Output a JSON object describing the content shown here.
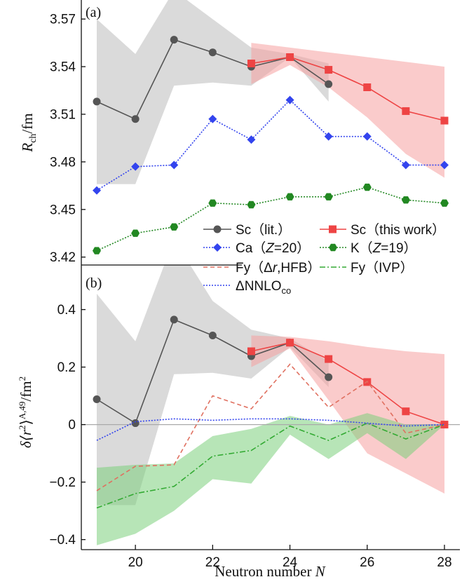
{
  "chart_data": [
    {
      "panel_label": "(a)",
      "type": "line",
      "ylabel": "R_ch/fm",
      "ylabel_main": "R",
      "ylabel_sub": "ch",
      "ylabel_unit": "/fm",
      "xlim": [
        18.6,
        28.4
      ],
      "ylim": [
        3.415,
        3.582
      ],
      "yticks": [
        3.42,
        3.45,
        3.48,
        3.51,
        3.54,
        3.57
      ],
      "ytick_labels": [
        "3.42",
        "3.45",
        "3.48",
        "3.51",
        "3.54",
        "3.57"
      ],
      "series": [
        {
          "name": "Sc (lit.)",
          "color": "#555555",
          "marker": "circle",
          "style": "solid",
          "x": [
            19,
            20,
            21,
            22,
            23,
            24,
            25
          ],
          "y": [
            3.518,
            3.507,
            3.557,
            3.549,
            3.54,
            3.546,
            3.529
          ]
        },
        {
          "name": "Sc (this work)",
          "color": "#ee4444",
          "marker": "square",
          "style": "solid",
          "x": [
            23,
            24,
            25,
            26,
            27,
            28
          ],
          "y": [
            3.542,
            3.546,
            3.538,
            3.527,
            3.512,
            3.506
          ]
        },
        {
          "name": "Ca (Z=20)",
          "color": "#3344ee",
          "marker": "diamond",
          "style": "dotted",
          "x": [
            19,
            20,
            21,
            22,
            23,
            24,
            25,
            26,
            27,
            28
          ],
          "y": [
            3.462,
            3.477,
            3.478,
            3.507,
            3.494,
            3.519,
            3.496,
            3.496,
            3.478,
            3.478
          ]
        },
        {
          "name": "K (Z=19)",
          "color": "#228822",
          "marker": "hexagon",
          "style": "dotted",
          "x": [
            19,
            20,
            21,
            22,
            23,
            24,
            25,
            26,
            27,
            28
          ],
          "y": [
            3.424,
            3.435,
            3.439,
            3.454,
            3.453,
            3.458,
            3.458,
            3.464,
            3.456,
            3.454
          ]
        }
      ],
      "bands": [
        {
          "series": "Sc (lit.)",
          "color": "#bbbbbb",
          "x": [
            19,
            20,
            21,
            22,
            23,
            24,
            25
          ],
          "upper": [
            3.57,
            3.548,
            3.588,
            3.57,
            3.552,
            3.548,
            3.542
          ],
          "lower": [
            3.466,
            3.466,
            3.528,
            3.53,
            3.528,
            3.546,
            3.518
          ]
        },
        {
          "series": "Sc (this work)",
          "color": "#f5a0a0",
          "x": [
            23,
            24,
            25,
            26,
            27,
            28
          ],
          "upper": [
            3.555,
            3.552,
            3.549,
            3.546,
            3.543,
            3.54
          ],
          "lower": [
            3.529,
            3.541,
            3.527,
            3.508,
            3.485,
            3.47
          ]
        }
      ]
    },
    {
      "panel_label": "(b)",
      "type": "line",
      "ylabel": "δ⟨r²⟩^A,49/fm²",
      "ylabel_main": "δ⟨r",
      "ylabel_sup": "2",
      "ylabel_close": "⟩",
      "ylabel_sup2": "A,49",
      "ylabel_unit": "/fm",
      "ylabel_unit_sup": "2",
      "xlabel": "Neutron number N",
      "xlabel_main": "Neutron number ",
      "xlabel_var": "N",
      "xlim": [
        18.6,
        28.4
      ],
      "ylim": [
        -0.435,
        0.555
      ],
      "xticks": [
        20,
        22,
        24,
        26,
        28
      ],
      "xtick_labels": [
        "20",
        "22",
        "24",
        "26",
        "28"
      ],
      "yticks": [
        -0.4,
        -0.2,
        0,
        0.2,
        0.4
      ],
      "ytick_labels": [
        "−0.4",
        "−0.2",
        "0",
        "0.2",
        "0.4"
      ],
      "series": [
        {
          "name": "Sc (lit.)",
          "color": "#555555",
          "marker": "circle",
          "style": "solid",
          "x": [
            19,
            20,
            21,
            22,
            23,
            24,
            25
          ],
          "y": [
            0.088,
            0.005,
            0.365,
            0.31,
            0.238,
            0.285,
            0.165
          ]
        },
        {
          "name": "Sc (this work)",
          "color": "#ee4444",
          "marker": "square",
          "style": "solid",
          "x": [
            23,
            24,
            25,
            26,
            27,
            28
          ],
          "y": [
            0.255,
            0.285,
            0.228,
            0.148,
            0.046,
            0.0
          ]
        },
        {
          "name": "Fy (Δr,HFB)",
          "color": "#e07060",
          "marker": "none",
          "style": "dashed",
          "x": [
            19,
            20,
            21,
            22,
            23,
            24,
            25,
            26,
            27,
            28
          ],
          "y": [
            -0.23,
            -0.145,
            -0.14,
            0.1,
            0.055,
            0.21,
            0.06,
            0.15,
            -0.03,
            0.0
          ]
        },
        {
          "name": "Fy (IVP)",
          "color": "#33aa33",
          "marker": "none",
          "style": "dashdot",
          "x": [
            19,
            20,
            21,
            22,
            23,
            24,
            25,
            26,
            27,
            28
          ],
          "y": [
            -0.29,
            -0.24,
            -0.215,
            -0.11,
            -0.09,
            -0.005,
            -0.055,
            0.005,
            -0.05,
            0.0
          ]
        },
        {
          "name": "ΔNNLOco",
          "color": "#3344ee",
          "marker": "none",
          "style": "dotted",
          "x": [
            19,
            20,
            21,
            22,
            23,
            24,
            25,
            26,
            27,
            28
          ],
          "y": [
            -0.055,
            0.01,
            0.02,
            0.015,
            0.02,
            0.02,
            0.015,
            0.005,
            -0.005,
            0.0
          ]
        }
      ],
      "bands": [
        {
          "series": "Sc (lit.)",
          "color": "#bbbbbb",
          "x": [
            19,
            20,
            21,
            22,
            23,
            24,
            25
          ],
          "upper": [
            0.455,
            0.29,
            0.645,
            0.43,
            0.33,
            0.3,
            0.22
          ],
          "lower": [
            -0.28,
            -0.28,
            0.175,
            0.18,
            0.16,
            0.27,
            0.13
          ]
        },
        {
          "series": "Sc (this work)",
          "color": "#f5a0a0",
          "x": [
            23,
            24,
            25,
            26,
            27,
            28
          ],
          "upper": [
            0.31,
            0.305,
            0.29,
            0.27,
            0.255,
            0.245
          ],
          "lower": [
            0.2,
            0.265,
            0.085,
            -0.1,
            -0.17,
            -0.24
          ]
        },
        {
          "series": "Fy (IVP)",
          "color": "#7ccf7c",
          "x": [
            19,
            20,
            21,
            22,
            23,
            24,
            25,
            26,
            27,
            28
          ],
          "upper": [
            -0.15,
            -0.14,
            -0.135,
            -0.04,
            -0.015,
            0.03,
            0.0,
            0.04,
            0.0,
            0.0
          ],
          "lower": [
            -0.42,
            -0.38,
            -0.3,
            -0.19,
            -0.205,
            -0.035,
            -0.12,
            -0.03,
            -0.12,
            0.0
          ]
        }
      ]
    }
  ],
  "legend": {
    "location": "between panels",
    "entries": [
      {
        "label": "Sc (lit.)",
        "color": "#555555",
        "marker": "circle",
        "style": "solid"
      },
      {
        "label": "Sc (this work)",
        "color": "#ee4444",
        "marker": "square",
        "style": "solid"
      },
      {
        "label": "Ca (Z=20)",
        "color": "#3344ee",
        "marker": "diamond",
        "style": "dotted"
      },
      {
        "label": "K (Z=19)",
        "color": "#228822",
        "marker": "hexagon",
        "style": "dotted"
      },
      {
        "label": "Fy (Δr,HFB)",
        "color": "#e07060",
        "marker": "none",
        "style": "dashed"
      },
      {
        "label": "Fy (IVP)",
        "color": "#33aa33",
        "marker": "none",
        "style": "dashdot"
      },
      {
        "label": "ΔNNLOco",
        "color": "#3344ee",
        "marker": "none",
        "style": "dotted"
      }
    ]
  },
  "legend_text": {
    "sc_lit": "Sc（lit.）",
    "sc_this": "Sc（this work）",
    "ca_pre": "Ca（",
    "ca_var": "Z",
    "ca_post": "=20）",
    "k_pre": "K（",
    "k_var": "Z",
    "k_post": "=19）",
    "fy_dr_pre": "Fy（Δ",
    "fy_dr_var": "r",
    "fy_dr_post": ",HFB）",
    "fy_ivp": "Fy（IVP）",
    "nnlo_main": "ΔNNLO",
    "nnlo_sub": "co"
  }
}
